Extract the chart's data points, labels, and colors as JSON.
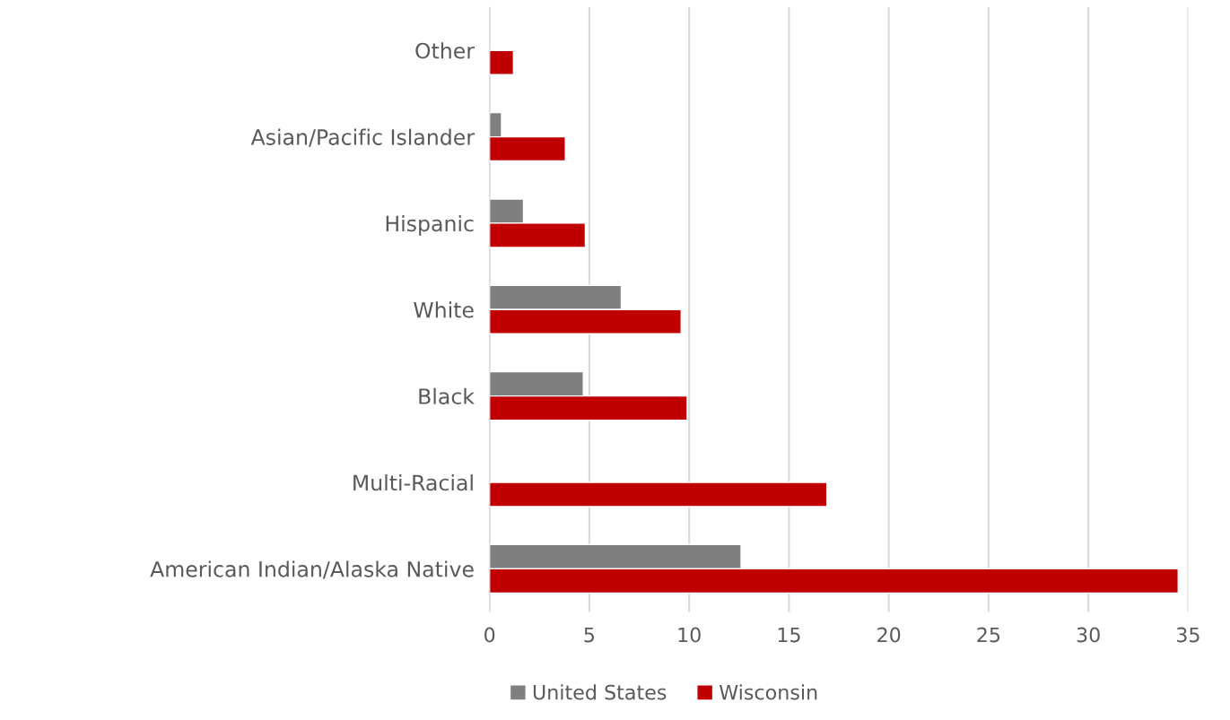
{
  "chart_data": {
    "type": "bar",
    "orientation": "horizontal",
    "categories": [
      "Other",
      "Asian/Pacific Islander",
      "Hispanic",
      "White",
      "Black",
      "Multi-Racial",
      "American Indian/Alaska Native"
    ],
    "series": [
      {
        "name": "United States",
        "color": "#7f7f7f",
        "values": [
          null,
          0.6,
          1.7,
          6.6,
          4.7,
          null,
          12.6
        ]
      },
      {
        "name": "Wisconsin",
        "color": "#c00000",
        "values": [
          1.2,
          3.8,
          4.8,
          9.6,
          9.9,
          16.9,
          34.5
        ]
      }
    ],
    "xlim": [
      0,
      35
    ],
    "xticks": [
      0,
      5,
      10,
      15,
      20,
      25,
      30,
      35
    ],
    "grid": "x",
    "legend": "bottom"
  }
}
